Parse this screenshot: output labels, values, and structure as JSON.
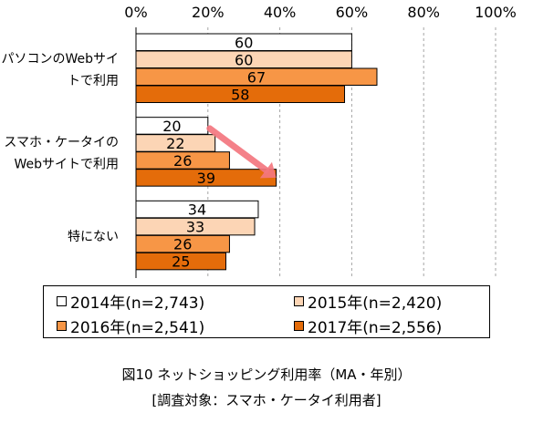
{
  "chart_data": {
    "type": "bar",
    "orientation": "horizontal",
    "categories": [
      "パソコンのWebサイトで利用",
      "スマホ・ケータイのWebサイトで利用",
      "特にない"
    ],
    "category_label_lines": [
      [
        "パソコンのWebサイ",
        "トで利用"
      ],
      [
        "スマホ・ケータイの",
        "Webサイトで利用"
      ],
      [
        "特にない"
      ]
    ],
    "series": [
      {
        "name": "2014年(n=2,743)",
        "color": "#ffffff",
        "values": [
          60,
          20,
          34
        ]
      },
      {
        "name": "2015年(n=2,420)",
        "color": "#fcd5b5",
        "values": [
          60,
          22,
          33
        ]
      },
      {
        "name": "2016年(n=2,541)",
        "color": "#f79646",
        "values": [
          67,
          26,
          26
        ]
      },
      {
        "name": "2017年(n=2,556)",
        "color": "#e46c0a",
        "values": [
          58,
          39,
          25
        ]
      }
    ],
    "xlim": [
      0,
      100
    ],
    "x_ticks": [
      "0%",
      "20%",
      "40%",
      "60%",
      "80%",
      "100%"
    ],
    "grid": "vertical dashed",
    "legend_position": "bottom",
    "annotation": "arrow",
    "arrow_color": "#f4777f"
  },
  "caption": {
    "line1": "図10 ネットショッピング利用率（MA・年別）",
    "line2": "[調査対象：スマホ・ケータイ利用者]"
  }
}
